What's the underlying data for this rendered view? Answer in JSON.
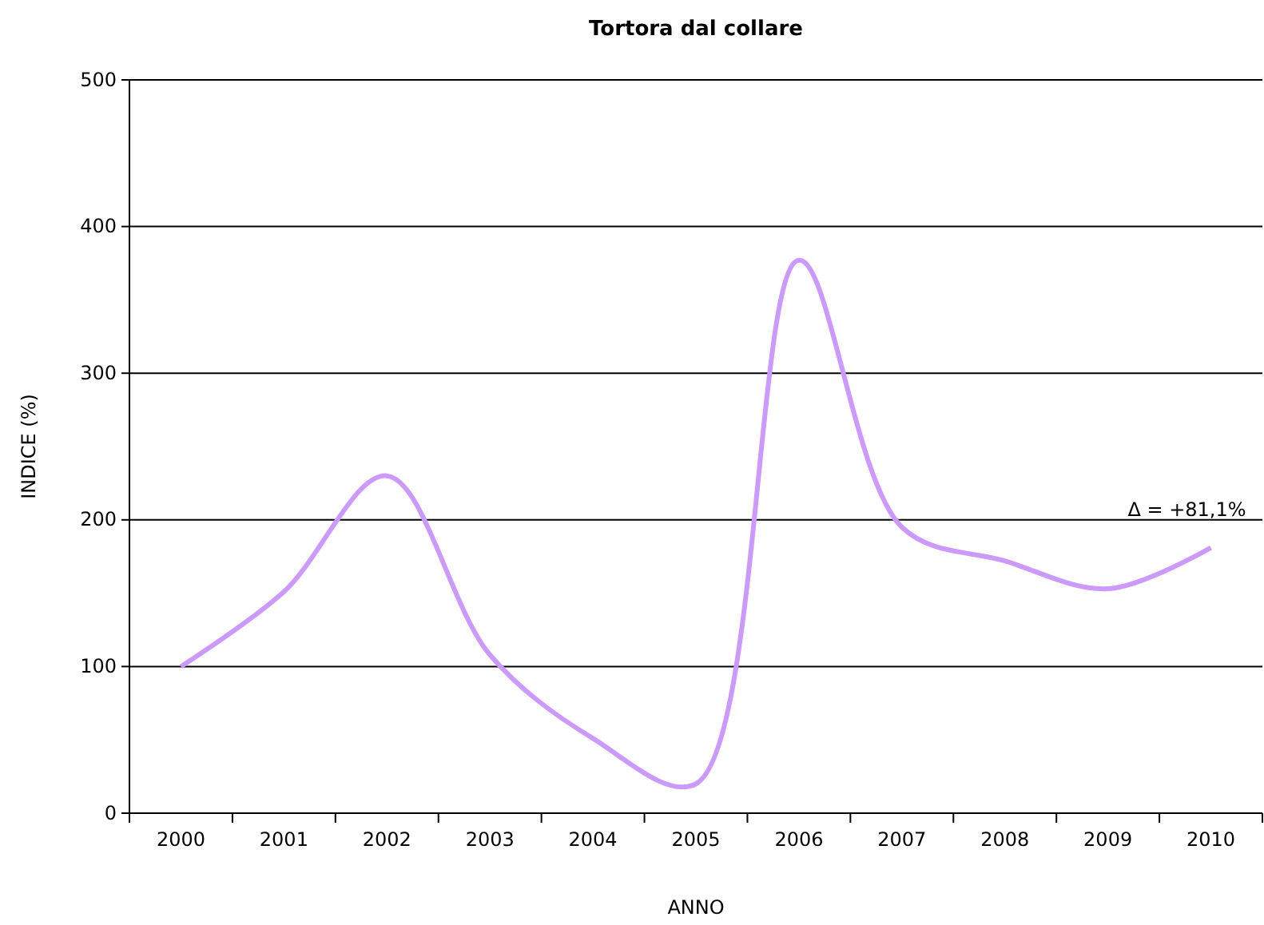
{
  "chart_data": {
    "type": "line",
    "title": "Tortora dal collare",
    "xlabel": "ANNO",
    "ylabel": "INDICE (%)",
    "categories": [
      "2000",
      "2001",
      "2002",
      "2003",
      "2004",
      "2005",
      "2006",
      "2007",
      "2008",
      "2009",
      "2010"
    ],
    "series": [
      {
        "color": "#cc99ff",
        "values": [
          100,
          151,
          230,
          108,
          51,
          20,
          377,
          195,
          172,
          153,
          181
        ]
      }
    ],
    "ylim": [
      0,
      500
    ],
    "yticks": [
      0,
      100,
      200,
      300,
      400,
      500
    ],
    "grid": "y",
    "marker": "none",
    "line_style": "solid",
    "annotations": [
      {
        "text": "Δ = +81,1%",
        "x": "2010",
        "y": 181
      }
    ]
  }
}
